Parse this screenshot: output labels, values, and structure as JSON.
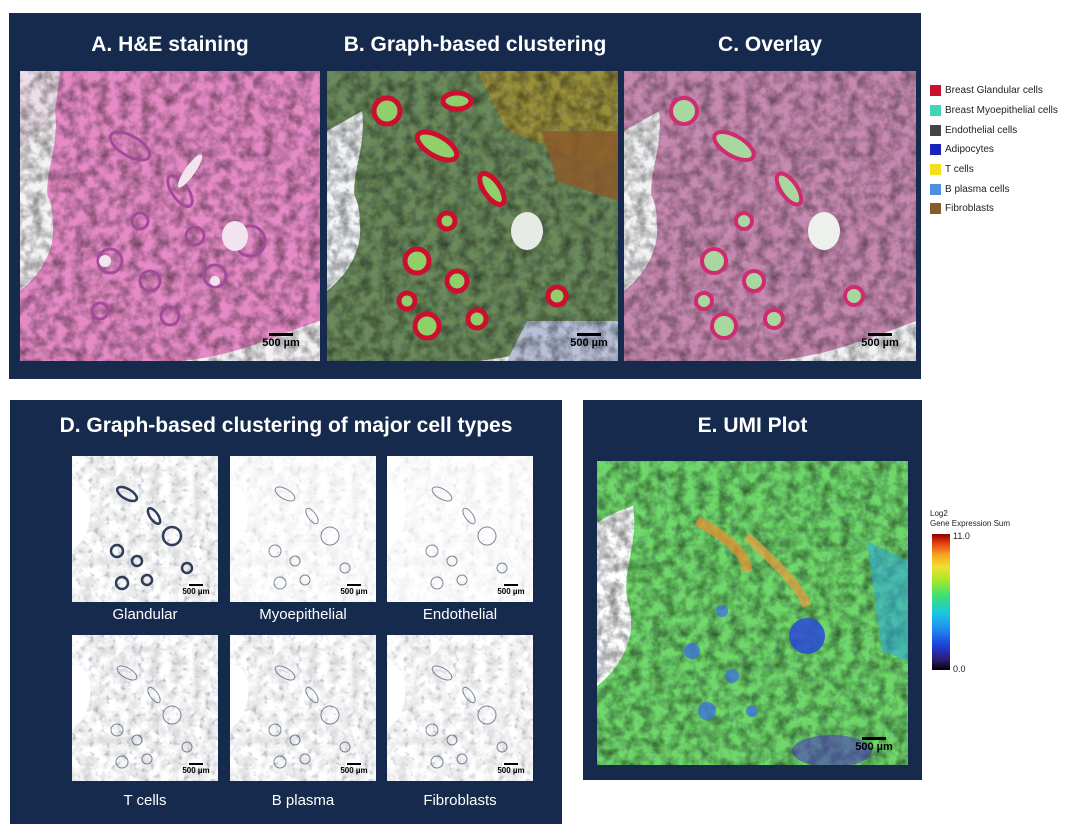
{
  "panel_top": {
    "titles": {
      "a": "A. H&E staining",
      "b": "B. Graph-based clustering",
      "c": "C. Overlay"
    },
    "scale_bar_label": "500 µm"
  },
  "legend": {
    "items": [
      {
        "label": "Breast Glandular cells",
        "color": "#cc0f2e"
      },
      {
        "label": "Breast Myoepithelial cells",
        "color": "#3fd6b8"
      },
      {
        "label": "Endothelial cells",
        "color": "#444444"
      },
      {
        "label": "Adipocytes",
        "color": "#1a24b8"
      },
      {
        "label": "T cells",
        "color": "#f2e020"
      },
      {
        "label": "B plasma cells",
        "color": "#4f8fe0"
      },
      {
        "label": "Fibroblasts",
        "color": "#8b5a2b"
      }
    ]
  },
  "panel_d": {
    "title": "D. Graph-based clustering of major cell types",
    "thumbnails": [
      {
        "label": "Glandular"
      },
      {
        "label": "Myoepithelial"
      },
      {
        "label": "Endothelial"
      },
      {
        "label": "T cells"
      },
      {
        "label": "B plasma"
      },
      {
        "label": "Fibroblasts"
      }
    ],
    "scale_bar_label": "500 µm"
  },
  "panel_e": {
    "title": "E. UMI Plot",
    "colorbar": {
      "title_line1": "Log2",
      "title_line2": "Gene Expression Sum",
      "max": "11.0",
      "min": "0.0"
    },
    "scale_bar_label": "500 µm"
  }
}
